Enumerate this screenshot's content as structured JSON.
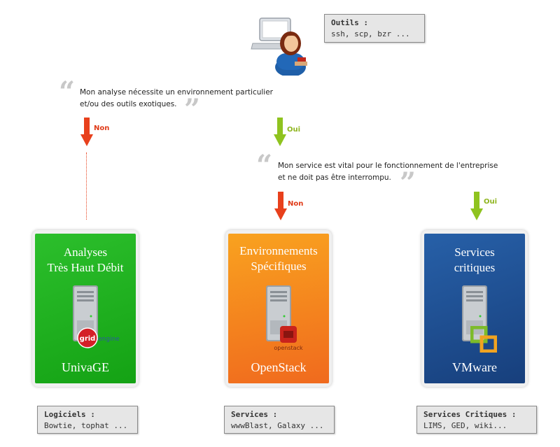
{
  "tools_note": {
    "title": "Outils :",
    "text": "ssh, scp, bzr ..."
  },
  "quote_top": {
    "line1": "Mon analyse nécessite un environnement particulier",
    "line2": "et/ou des outils exotiques."
  },
  "quote_mid": {
    "line1": "Mon service est vital pour le fonctionnement de l'entreprise",
    "line2": "et ne doit pas être interrompu."
  },
  "arrows": {
    "non_1": "Non",
    "oui_1": "Oui",
    "non_2": "Non",
    "oui_2": "Oui"
  },
  "cards": [
    {
      "title1": "Analyses",
      "title2": "Très Haut Débit",
      "logo_a": "grid",
      "logo_b": "engine",
      "footer": "UnivaGE",
      "color": "#1fae1f"
    },
    {
      "title1": "Environnements",
      "title2": "Spécifiques",
      "logo": "openstack",
      "footer": "OpenStack",
      "color": "#f57d1f"
    },
    {
      "title1": "Services",
      "title2": "critiques",
      "footer": "VMware",
      "color": "#1d4f93"
    }
  ],
  "bottom_notes": [
    {
      "title": "Logiciels :",
      "text": "Bowtie, tophat ..."
    },
    {
      "title": "Services :",
      "text": "wwwBlast, Galaxy ..."
    },
    {
      "title": "Services Critiques :",
      "text": "LIMS, GED, wiki..."
    }
  ],
  "colors": {
    "no_arrow": "#e8401c",
    "yes_arrow": "#8fc31f",
    "no_text": "#e03a17",
    "yes_text": "#8fb51f"
  }
}
